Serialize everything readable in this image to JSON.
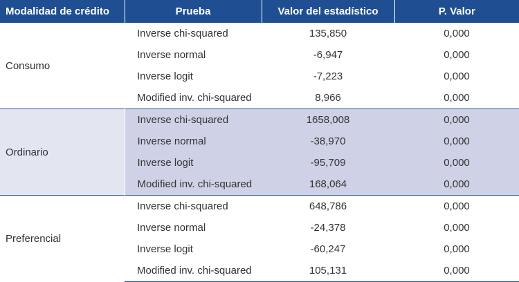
{
  "table": {
    "header": [
      "Modalidad de crédito",
      "Prueba",
      "Valor del estadístico",
      "P. Valor"
    ],
    "groups": [
      {
        "label": "Consumo",
        "rows": [
          [
            "Inverse chi-squared",
            "135,850",
            "0,000"
          ],
          [
            "Inverse normal",
            "-6,947",
            "0,000"
          ],
          [
            "Inverse logit",
            "-7,223",
            "0,000"
          ],
          [
            "Modified inv. chi-squared",
            "8,966",
            "0,000"
          ]
        ]
      },
      {
        "label": "Ordinario",
        "rows": [
          [
            "Inverse chi-squared",
            "1658,008",
            "0,000"
          ],
          [
            "Inverse normal",
            "-38,970",
            "0,000"
          ],
          [
            "Inverse logit",
            "-95,709",
            "0,000"
          ],
          [
            "Modified inv. chi-squared",
            "168,064",
            "0,000"
          ]
        ]
      },
      {
        "label": "Preferencial",
        "rows": [
          [
            "Inverse chi-squared",
            "648,786",
            "0,000"
          ],
          [
            "Inverse normal",
            "-24,378",
            "0,000"
          ],
          [
            "Inverse logit",
            "-60,247",
            "0,000"
          ],
          [
            "Modified inv. chi-squared",
            "105,131",
            "0,000"
          ]
        ]
      }
    ]
  }
}
